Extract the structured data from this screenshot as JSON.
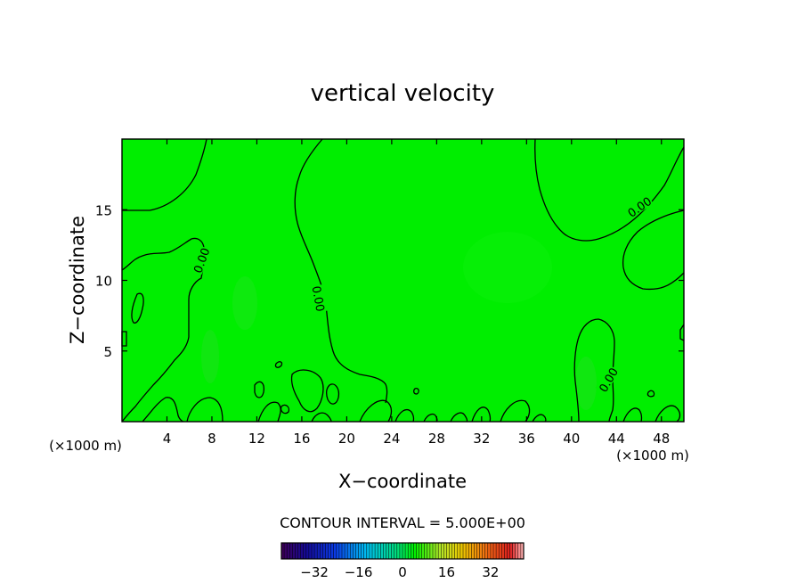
{
  "chart_data": {
    "type": "heatmap",
    "title": "vertical velocity",
    "xlabel": "X−coordinate",
    "ylabel": "Z−coordinate",
    "x_unit": "(×1000 m)",
    "x_unit_right": "(×1000 m)",
    "xlim": [
      0,
      50
    ],
    "ylim": [
      0,
      20
    ],
    "xticks": [
      4,
      8,
      12,
      16,
      20,
      24,
      28,
      32,
      36,
      40,
      44,
      48
    ],
    "yticks": [
      5,
      10,
      15
    ],
    "field_color": "#00ee00",
    "contour_levels": [
      0
    ],
    "contour_labels": [
      "0.00",
      "0.00",
      "0.00",
      "0.00"
    ],
    "contour_interval_text": "CONTOUR INTERVAL = 5.000E+00",
    "colorbar": {
      "ticks": [
        -32,
        -16,
        0,
        16,
        32
      ],
      "range": [
        -44,
        44
      ]
    }
  }
}
